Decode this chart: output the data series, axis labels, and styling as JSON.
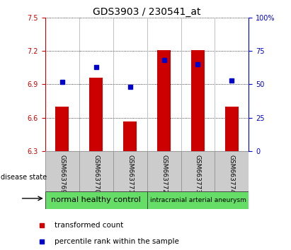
{
  "title": "GDS3903 / 230541_at",
  "samples": [
    "GSM663769",
    "GSM663770",
    "GSM663771",
    "GSM663772",
    "GSM663773",
    "GSM663774"
  ],
  "transformed_count": [
    6.7,
    6.96,
    6.57,
    7.21,
    7.21,
    6.7
  ],
  "percentile_rank": [
    52,
    63,
    48,
    68,
    65,
    53
  ],
  "bar_bottom": 6.3,
  "ylim_left": [
    6.3,
    7.5
  ],
  "ylim_right": [
    0,
    100
  ],
  "yticks_left": [
    6.3,
    6.6,
    6.9,
    7.2,
    7.5
  ],
  "yticks_right": [
    0,
    25,
    50,
    75,
    100
  ],
  "bar_color": "#cc0000",
  "dot_color": "#0000cc",
  "group_labels": [
    "normal healthy control",
    "intracranial arterial aneurysm"
  ],
  "group_colors": [
    "#66dd66",
    "#66dd66"
  ],
  "group_ranges": [
    [
      0,
      2
    ],
    [
      3,
      5
    ]
  ],
  "disease_state_label": "disease state",
  "legend_items": [
    {
      "label": "transformed count",
      "color": "#cc0000"
    },
    {
      "label": "percentile rank within the sample",
      "color": "#0000cc"
    }
  ],
  "title_fontsize": 10,
  "tick_label_fontsize": 7,
  "sample_label_fontsize": 6.5,
  "group_label_fontsize": 8,
  "legend_fontsize": 7.5
}
